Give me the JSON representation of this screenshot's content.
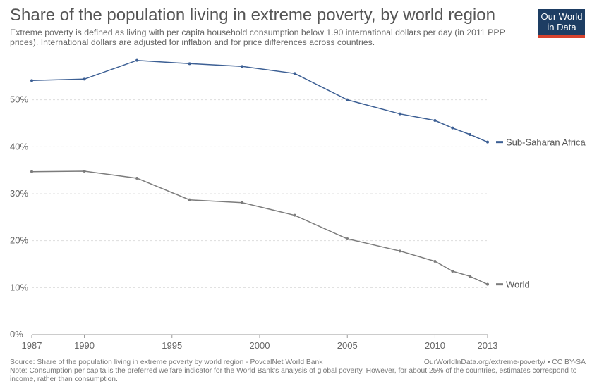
{
  "header": {
    "title": "Share of the population living in extreme poverty, by world region",
    "subtitle": "Extreme poverty is defined as living with per capita household consumption below 1.90 international dollars per day (in 2011 PPP prices). International dollars are adjusted for inflation and for price differences across countries.",
    "logo_line1": "Our World",
    "logo_line2": "in Data"
  },
  "footer": {
    "source": "Source: Share of the population living in extreme poverty by world region - PovcalNet World Bank",
    "url": "OurWorldInData.org/extreme-poverty/ • CC BY-SA",
    "note": "Note: Consumption per capita is the preferred welfare indicator for the World Bank's analysis of global poverty. However, for about 25% of the countries, estimates correspond to income, rather than consumption."
  },
  "chart_data": {
    "type": "line",
    "title": "Share of the population living in extreme poverty, by world region",
    "xlabel": "",
    "ylabel": "",
    "xlim": [
      1987,
      2013
    ],
    "ylim": [
      0,
      60
    ],
    "x_ticks": [
      1987,
      1990,
      1995,
      2000,
      2005,
      2010,
      2013
    ],
    "y_ticks": [
      0,
      10,
      20,
      30,
      40,
      50
    ],
    "y_tick_labels": [
      "0%",
      "10%",
      "20%",
      "30%",
      "40%",
      "50%"
    ],
    "grid": "horizontal dashed",
    "legend": "end-of-line labels",
    "series": [
      {
        "name": "Sub-Saharan Africa",
        "color": "#3c5f94",
        "x": [
          1987,
          1990,
          1993,
          1996,
          1999,
          2002,
          2005,
          2008,
          2010,
          2011,
          2012,
          2013
        ],
        "values": [
          54.1,
          54.4,
          58.4,
          57.7,
          57.1,
          55.6,
          50.0,
          47.0,
          45.6,
          44.0,
          42.6,
          41.0
        ]
      },
      {
        "name": "World",
        "color": "#7c7c7c",
        "x": [
          1987,
          1990,
          1993,
          1996,
          1999,
          2002,
          2005,
          2008,
          2010,
          2011,
          2012,
          2013
        ],
        "values": [
          34.7,
          34.8,
          33.3,
          28.7,
          28.1,
          25.4,
          20.4,
          17.8,
          15.6,
          13.5,
          12.4,
          10.7
        ]
      }
    ]
  }
}
